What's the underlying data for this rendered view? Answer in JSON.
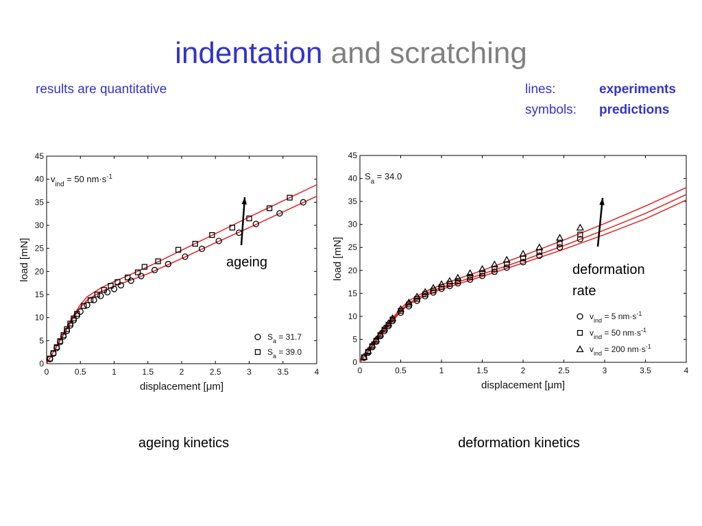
{
  "slide": {
    "title_main": "indentation",
    "title_rest": "and scratching",
    "subtitle": "results are quantitative",
    "key": [
      {
        "label": "lines:",
        "meaning": "experiments"
      },
      {
        "label": "symbols:",
        "meaning": "predictions"
      }
    ],
    "captions": [
      "ageing kinetics",
      "deformation kinetics"
    ]
  },
  "chart_data": [
    {
      "type": "line",
      "xlabel": "displacement [μm]",
      "ylabel": "load [mN]",
      "xlim": [
        0,
        4
      ],
      "ylim": [
        0,
        45
      ],
      "xticks": [
        0,
        0.5,
        1,
        1.5,
        2,
        2.5,
        3,
        3.5,
        4
      ],
      "yticks": [
        0,
        5,
        10,
        15,
        20,
        25,
        30,
        35,
        40,
        45
      ],
      "legend": "lower right",
      "inset": [
        {
          "t": "v"
        },
        {
          "t": "ind",
          "sub": true
        },
        {
          "t": " = 50 nm·s"
        },
        {
          "t": "-1",
          "sup": true
        }
      ],
      "annotation": [
        "ageing"
      ],
      "series": [
        {
          "color": "#e02020",
          "x": [
            0,
            0.1,
            0.2,
            0.3,
            0.4,
            0.5,
            0.6,
            0.8,
            1,
            1.5,
            2,
            2.5,
            3,
            3.5,
            4
          ],
          "values": [
            0,
            2.5,
            5,
            7.5,
            10,
            12.2,
            13.8,
            15.6,
            16.8,
            19.5,
            22.8,
            26.2,
            29.5,
            32.9,
            36.3
          ]
        },
        {
          "color": "#e02020",
          "x": [
            0,
            0.1,
            0.2,
            0.3,
            0.4,
            0.5,
            0.6,
            0.8,
            1,
            1.5,
            2,
            2.5,
            3,
            3.5,
            4
          ],
          "values": [
            0,
            2.6,
            5.2,
            7.8,
            10.5,
            12.8,
            14.5,
            16.4,
            17.8,
            21.0,
            24.6,
            28.2,
            31.8,
            35.3,
            38.8
          ]
        },
        {
          "name": [
            {
              "t": "S"
            },
            {
              "t": "a",
              "sub": true
            },
            {
              "t": " = 31.7"
            }
          ],
          "marker": "circle",
          "color": "#000000",
          "x": [
            0.05,
            0.1,
            0.15,
            0.2,
            0.25,
            0.3,
            0.35,
            0.4,
            0.45,
            0.5,
            0.6,
            0.7,
            0.8,
            0.9,
            1.0,
            1.1,
            1.25,
            1.4,
            1.6,
            1.8,
            2.05,
            2.3,
            2.55,
            2.85,
            3.1,
            3.45,
            3.8
          ],
          "values": [
            1,
            2.2,
            3.4,
            4.7,
            5.9,
            7.1,
            8.3,
            9.4,
            10.4,
            11.3,
            12.7,
            13.8,
            14.7,
            15.5,
            16.2,
            17,
            18,
            19,
            20.3,
            21.6,
            23.2,
            24.9,
            26.6,
            28.4,
            30.3,
            32.6,
            35
          ]
        },
        {
          "name": [
            {
              "t": "S"
            },
            {
              "t": "a",
              "sub": true
            },
            {
              "t": " = 39.0"
            }
          ],
          "marker": "square",
          "color": "#000000",
          "x": [
            0.05,
            0.1,
            0.15,
            0.2,
            0.25,
            0.3,
            0.35,
            0.4,
            0.45,
            0.55,
            0.65,
            0.75,
            0.85,
            0.95,
            1.05,
            1.2,
            1.35,
            1.45,
            1.65,
            1.95,
            2.2,
            2.45,
            2.75,
            3.0,
            3.3,
            3.6
          ],
          "values": [
            1.1,
            2.3,
            3.6,
            4.9,
            6.2,
            7.5,
            8.7,
            9.8,
            10.8,
            12.5,
            13.8,
            15,
            16,
            16.9,
            17.7,
            18.7,
            19.8,
            21,
            22.2,
            24.7,
            26,
            27.9,
            29.5,
            31.5,
            33.7,
            36
          ]
        }
      ]
    },
    {
      "type": "line",
      "xlabel": "displacement [μm]",
      "ylabel": "load [mN]",
      "xlim": [
        0,
        4
      ],
      "ylim": [
        0,
        45
      ],
      "xticks": [
        0,
        0.5,
        1,
        1.5,
        2,
        2.5,
        3,
        3.5,
        4
      ],
      "yticks": [
        0,
        5,
        10,
        15,
        20,
        25,
        30,
        35,
        40,
        45
      ],
      "legend": "lower right",
      "inset": [
        {
          "t": "S"
        },
        {
          "t": "a",
          "sub": true
        },
        {
          "t": " = 34.0"
        }
      ],
      "annotation": [
        "deformation",
        "rate"
      ],
      "series": [
        {
          "color": "#e02020",
          "x": [
            0,
            0.1,
            0.2,
            0.3,
            0.4,
            0.5,
            0.6,
            0.8,
            1,
            1.5,
            2,
            2.5,
            3,
            3.5,
            4
          ],
          "values": [
            0,
            2.3,
            4.6,
            6.9,
            9.0,
            11,
            12.6,
            14.5,
            15.9,
            18.7,
            21.6,
            24.6,
            27.8,
            31.2,
            35.3
          ]
        },
        {
          "color": "#e02020",
          "x": [
            0,
            0.1,
            0.2,
            0.3,
            0.4,
            0.5,
            0.6,
            0.8,
            1,
            1.5,
            2,
            2.5,
            3,
            3.5,
            4
          ],
          "values": [
            0,
            2.4,
            4.8,
            7.1,
            9.3,
            11.3,
            12.9,
            14.9,
            16.3,
            19.2,
            22.2,
            25.4,
            28.8,
            32.4,
            36.5
          ]
        },
        {
          "color": "#e02020",
          "x": [
            0,
            0.1,
            0.2,
            0.3,
            0.4,
            0.5,
            0.6,
            0.8,
            1,
            1.5,
            2,
            2.5,
            3,
            3.5,
            4
          ],
          "values": [
            0,
            2.5,
            5,
            7.4,
            9.6,
            11.7,
            13.4,
            15.4,
            16.9,
            20,
            23.2,
            26.6,
            30.2,
            34,
            38
          ]
        },
        {
          "name": [
            {
              "t": "v"
            },
            {
              "t": "ind",
              "sub": true
            },
            {
              "t": " = 5 nm·s"
            },
            {
              "t": "-1",
              "sup": true
            }
          ],
          "marker": "circle",
          "color": "#000000",
          "x": [
            0.05,
            0.1,
            0.15,
            0.2,
            0.25,
            0.3,
            0.35,
            0.4,
            0.5,
            0.6,
            0.7,
            0.8,
            0.9,
            1.0,
            1.1,
            1.2,
            1.35,
            1.5,
            1.65,
            1.8,
            2.0,
            2.2,
            2.45,
            2.7
          ],
          "values": [
            1,
            2.1,
            3.3,
            4.5,
            5.7,
            6.8,
            7.9,
            9,
            10.8,
            12.2,
            13.4,
            14.4,
            15.2,
            16,
            16.6,
            17.2,
            18,
            18.8,
            19.7,
            20.6,
            21.8,
            23.2,
            25,
            26.8
          ]
        },
        {
          "name": [
            {
              "t": "v"
            },
            {
              "t": "ind",
              "sub": true
            },
            {
              "t": " = 50 nm·s"
            },
            {
              "t": "-1",
              "sup": true
            }
          ],
          "marker": "square",
          "color": "#000000",
          "x": [
            0.05,
            0.1,
            0.15,
            0.2,
            0.25,
            0.3,
            0.35,
            0.4,
            0.5,
            0.6,
            0.7,
            0.8,
            0.9,
            1.0,
            1.1,
            1.2,
            1.35,
            1.5,
            1.65,
            1.8,
            2.0,
            2.2,
            2.45,
            2.7
          ],
          "values": [
            1.1,
            2.3,
            3.5,
            4.7,
            5.9,
            7.1,
            8.2,
            9.3,
            11.2,
            12.6,
            13.8,
            14.8,
            15.6,
            16.4,
            17.1,
            17.7,
            18.6,
            19.4,
            20.3,
            21.3,
            22.6,
            24,
            25.8,
            27.8
          ]
        },
        {
          "name": [
            {
              "t": "v"
            },
            {
              "t": "ind",
              "sub": true
            },
            {
              "t": " = 200 nm·s"
            },
            {
              "t": "-1",
              "sup": true
            }
          ],
          "marker": "triangle",
          "color": "#000000",
          "x": [
            0.05,
            0.1,
            0.15,
            0.2,
            0.25,
            0.3,
            0.35,
            0.4,
            0.5,
            0.6,
            0.7,
            0.8,
            0.9,
            1.0,
            1.1,
            1.2,
            1.35,
            1.5,
            1.65,
            1.8,
            2.0,
            2.2,
            2.45,
            2.7
          ],
          "values": [
            1.2,
            2.5,
            3.8,
            5,
            6.2,
            7.4,
            8.5,
            9.6,
            11.6,
            13,
            14.3,
            15.3,
            16.2,
            17,
            17.7,
            18.4,
            19.4,
            20.3,
            21.3,
            22.3,
            23.6,
            25,
            27.1,
            29.3
          ]
        }
      ]
    }
  ]
}
